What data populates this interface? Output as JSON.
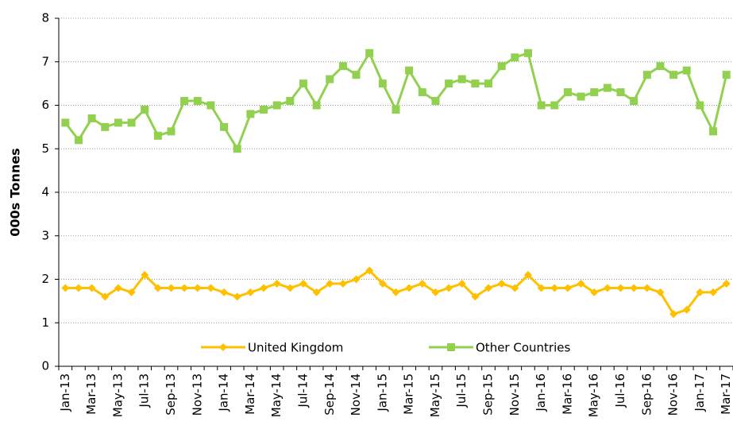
{
  "chart_data": {
    "type": "line",
    "ylabel": "000s Tonnes",
    "categories": [
      "Jan-13",
      null,
      "Mar-13",
      null,
      "May-13",
      null,
      "Jul-13",
      null,
      "Sep-13",
      null,
      "Nov-13",
      null,
      "Jan-14",
      null,
      "Mar-14",
      null,
      "May-14",
      null,
      "Jul-14",
      null,
      "Sep-14",
      null,
      "Nov-14",
      null,
      "Jan-15",
      null,
      "Mar-15",
      null,
      "May-15",
      null,
      "Jul-15",
      null,
      "Sep-15",
      null,
      "Nov-15",
      null,
      "Jan-16",
      null,
      "Mar-16",
      null,
      "May-16",
      null,
      "Jul-16",
      null,
      "Sep-16",
      null,
      "Nov-16",
      null,
      "Jan-17",
      null,
      "Mar-17"
    ],
    "series": [
      {
        "name": "United Kingdom",
        "color": "#ffc000",
        "marker": "diamond",
        "values": [
          1.8,
          1.8,
          1.8,
          1.6,
          1.8,
          1.7,
          2.1,
          1.8,
          1.8,
          1.8,
          1.8,
          1.8,
          1.7,
          1.6,
          1.7,
          1.8,
          1.9,
          1.8,
          1.9,
          1.7,
          1.9,
          1.9,
          2.0,
          2.2,
          1.9,
          1.7,
          1.8,
          1.9,
          1.7,
          1.8,
          1.9,
          1.6,
          1.8,
          1.9,
          1.8,
          2.1,
          1.8,
          1.8,
          1.8,
          1.9,
          1.7,
          1.8,
          1.8,
          1.8,
          1.8,
          1.7,
          1.2,
          1.3,
          1.7,
          1.7,
          1.9
        ]
      },
      {
        "name": "Other Countries",
        "color": "#92d050",
        "marker": "square",
        "values": [
          5.6,
          5.2,
          5.7,
          5.5,
          5.6,
          5.6,
          5.9,
          5.3,
          5.4,
          6.1,
          6.1,
          6.0,
          5.5,
          5.0,
          5.8,
          5.9,
          6.0,
          6.1,
          6.5,
          6.0,
          6.6,
          6.9,
          6.7,
          7.2,
          6.5,
          5.9,
          6.8,
          6.3,
          6.1,
          6.5,
          6.6,
          6.5,
          6.5,
          6.9,
          7.1,
          7.2,
          6.0,
          6.0,
          6.3,
          6.2,
          6.3,
          6.4,
          6.3,
          6.1,
          6.7,
          6.9,
          6.7,
          6.8,
          6.0,
          5.4,
          6.7
        ]
      }
    ],
    "ylim": [
      0,
      8
    ],
    "yticks": [
      0,
      1,
      2,
      3,
      4,
      5,
      6,
      7,
      8
    ],
    "grid": true,
    "legend": "bottom"
  }
}
